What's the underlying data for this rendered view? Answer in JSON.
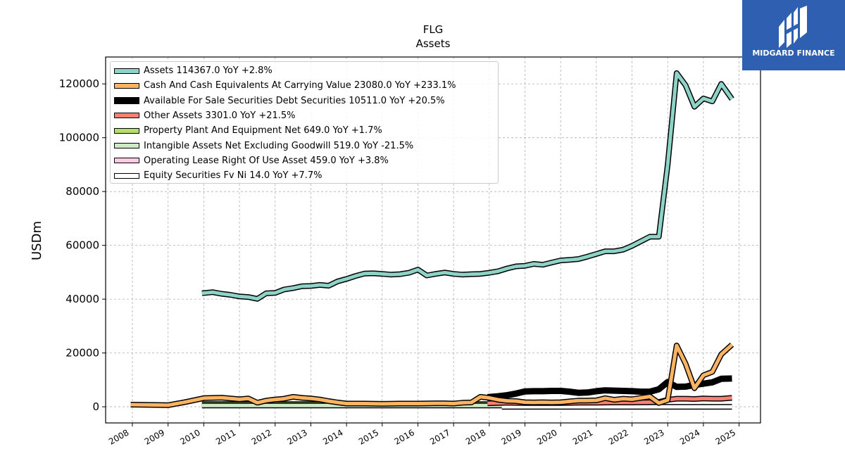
{
  "brand": {
    "name": "MIDGARD FINANCE",
    "logo_icon": "midgard-logo-icon",
    "background": "#2f5fb0"
  },
  "chart_data": {
    "type": "line",
    "title": "FLG",
    "subtitle": "Assets",
    "xlabel": "",
    "ylabel": "USDm",
    "xlim": [
      2007.25,
      2025.6
    ],
    "ylim": [
      -6000,
      130000
    ],
    "x_ticks": [
      "2008",
      "2009",
      "2010",
      "2011",
      "2012",
      "2013",
      "2014",
      "2015",
      "2016",
      "2017",
      "2018",
      "2019",
      "2020",
      "2021",
      "2022",
      "2023",
      "2024",
      "2025"
    ],
    "y_ticks": [
      "0",
      "20000",
      "40000",
      "60000",
      "80000",
      "100000",
      "120000"
    ],
    "grid": true,
    "legend_position": "top-left",
    "series": [
      {
        "name": "Assets  114367.0 YoY +2.8%",
        "color": "#8dd3c7",
        "width": 5,
        "points": [
          [
            2009.95,
            42200
          ],
          [
            2010.25,
            42600
          ],
          [
            2010.5,
            42000
          ],
          [
            2010.75,
            41600
          ],
          [
            2011.0,
            41000
          ],
          [
            2011.25,
            40800
          ],
          [
            2011.5,
            40100
          ],
          [
            2011.75,
            42200
          ],
          [
            2012.0,
            42300
          ],
          [
            2012.25,
            43600
          ],
          [
            2012.5,
            44100
          ],
          [
            2012.75,
            44800
          ],
          [
            2013.0,
            44900
          ],
          [
            2013.25,
            45300
          ],
          [
            2013.5,
            45000
          ],
          [
            2013.75,
            46600
          ],
          [
            2014.0,
            47500
          ],
          [
            2014.25,
            48600
          ],
          [
            2014.5,
            49500
          ],
          [
            2014.75,
            49600
          ],
          [
            2015.0,
            49400
          ],
          [
            2015.25,
            49100
          ],
          [
            2015.5,
            49300
          ],
          [
            2015.75,
            49800
          ],
          [
            2016.0,
            51000
          ],
          [
            2016.25,
            48800
          ],
          [
            2016.5,
            49400
          ],
          [
            2016.75,
            49900
          ],
          [
            2017.0,
            49400
          ],
          [
            2017.25,
            49100
          ],
          [
            2017.5,
            49300
          ],
          [
            2017.75,
            49400
          ],
          [
            2018.0,
            49800
          ],
          [
            2018.25,
            50400
          ],
          [
            2018.5,
            51400
          ],
          [
            2018.75,
            52200
          ],
          [
            2019.0,
            52400
          ],
          [
            2019.25,
            53100
          ],
          [
            2019.5,
            52800
          ],
          [
            2019.75,
            53600
          ],
          [
            2020.0,
            54400
          ],
          [
            2020.25,
            54600
          ],
          [
            2020.5,
            54900
          ],
          [
            2020.75,
            55800
          ],
          [
            2021.0,
            56800
          ],
          [
            2021.25,
            57800
          ],
          [
            2021.5,
            57800
          ],
          [
            2021.75,
            58400
          ],
          [
            2022.0,
            59800
          ],
          [
            2022.25,
            61500
          ],
          [
            2022.5,
            63200
          ],
          [
            2022.75,
            63200
          ],
          [
            2023.0,
            90000
          ],
          [
            2023.25,
            124000
          ],
          [
            2023.5,
            119500
          ],
          [
            2023.75,
            111500
          ],
          [
            2024.0,
            114600
          ],
          [
            2024.25,
            113500
          ],
          [
            2024.5,
            120000
          ],
          [
            2024.8,
            114367
          ]
        ]
      },
      {
        "name": "Cash And Cash Equivalents At Carrying Value  23080.0 YoY +233.1%",
        "color": "#fdb462",
        "width": 5,
        "points": [
          [
            2007.95,
            800
          ],
          [
            2008.5,
            700
          ],
          [
            2009.0,
            600
          ],
          [
            2009.5,
            1800
          ],
          [
            2010.0,
            3200
          ],
          [
            2010.5,
            3400
          ],
          [
            2011.0,
            2800
          ],
          [
            2011.25,
            3100
          ],
          [
            2011.5,
            1500
          ],
          [
            2011.75,
            2300
          ],
          [
            2012.0,
            2700
          ],
          [
            2012.25,
            3000
          ],
          [
            2012.5,
            3700
          ],
          [
            2012.75,
            3300
          ],
          [
            2013.0,
            3100
          ],
          [
            2013.25,
            2700
          ],
          [
            2013.5,
            2100
          ],
          [
            2013.75,
            1600
          ],
          [
            2014.0,
            1200
          ],
          [
            2014.5,
            1200
          ],
          [
            2015.0,
            1100
          ],
          [
            2015.5,
            1200
          ],
          [
            2016.0,
            1200
          ],
          [
            2016.5,
            1300
          ],
          [
            2016.75,
            1300
          ],
          [
            2017.0,
            1200
          ],
          [
            2017.25,
            1500
          ],
          [
            2017.5,
            1600
          ],
          [
            2017.75,
            3700
          ],
          [
            2018.0,
            3300
          ],
          [
            2018.25,
            2600
          ],
          [
            2018.5,
            2200
          ],
          [
            2018.75,
            2100
          ],
          [
            2019.0,
            1700
          ],
          [
            2019.25,
            1600
          ],
          [
            2019.5,
            1700
          ],
          [
            2019.75,
            1600
          ],
          [
            2020.0,
            1700
          ],
          [
            2020.25,
            2000
          ],
          [
            2020.5,
            2300
          ],
          [
            2020.75,
            2300
          ],
          [
            2021.0,
            2400
          ],
          [
            2021.25,
            3200
          ],
          [
            2021.5,
            2600
          ],
          [
            2021.75,
            3000
          ],
          [
            2022.0,
            2800
          ],
          [
            2022.25,
            3300
          ],
          [
            2022.5,
            3800
          ],
          [
            2022.75,
            1400
          ],
          [
            2023.0,
            2500
          ],
          [
            2023.25,
            22800
          ],
          [
            2023.5,
            16000
          ],
          [
            2023.75,
            6900
          ],
          [
            2024.0,
            11700
          ],
          [
            2024.25,
            13000
          ],
          [
            2024.5,
            19500
          ],
          [
            2024.8,
            23080
          ]
        ]
      },
      {
        "name": "Available For Sale Securities Debt Securities  10511.0 YoY +20.5%",
        "color": "#000000",
        "width": 9,
        "points": [
          [
            2017.95,
            3600
          ],
          [
            2018.25,
            3900
          ],
          [
            2018.5,
            4300
          ],
          [
            2018.75,
            4900
          ],
          [
            2019.0,
            5700
          ],
          [
            2019.25,
            5800
          ],
          [
            2019.5,
            5800
          ],
          [
            2019.75,
            5900
          ],
          [
            2020.0,
            5900
          ],
          [
            2020.25,
            5600
          ],
          [
            2020.5,
            5200
          ],
          [
            2020.75,
            5300
          ],
          [
            2021.0,
            5800
          ],
          [
            2021.25,
            6100
          ],
          [
            2021.5,
            6000
          ],
          [
            2021.75,
            5900
          ],
          [
            2022.0,
            5800
          ],
          [
            2022.25,
            5600
          ],
          [
            2022.5,
            5600
          ],
          [
            2022.75,
            6500
          ],
          [
            2023.0,
            9200
          ],
          [
            2023.25,
            7400
          ],
          [
            2023.5,
            7500
          ],
          [
            2023.75,
            8100
          ],
          [
            2024.0,
            8600
          ],
          [
            2024.25,
            9100
          ],
          [
            2024.5,
            10400
          ],
          [
            2024.8,
            10511
          ]
        ]
      },
      {
        "name": "Other Assets  3301.0 YoY +21.5%",
        "color": "#fb8072",
        "width": 5,
        "points": [
          [
            2017.95,
            1300
          ],
          [
            2018.5,
            1500
          ],
          [
            2019.0,
            1400
          ],
          [
            2019.5,
            1400
          ],
          [
            2020.0,
            1400
          ],
          [
            2020.5,
            1500
          ],
          [
            2021.0,
            1500
          ],
          [
            2021.5,
            1600
          ],
          [
            2022.0,
            1600
          ],
          [
            2022.5,
            1700
          ],
          [
            2022.75,
            1800
          ],
          [
            2023.0,
            2600
          ],
          [
            2023.25,
            3000
          ],
          [
            2023.5,
            3000
          ],
          [
            2023.75,
            2900
          ],
          [
            2024.0,
            3100
          ],
          [
            2024.25,
            3000
          ],
          [
            2024.5,
            3000
          ],
          [
            2024.8,
            3301
          ]
        ]
      },
      {
        "name": "Property Plant And Equipment Net  649.0 YoY +1.7%",
        "color": "#b3de69",
        "width": 5,
        "points": [
          [
            2009.95,
            1000
          ],
          [
            2018.35,
            1000
          ]
        ]
      },
      {
        "name": "Intangible Assets Net Excluding Goodwill  519.0 YoY -21.5%",
        "color": "#ccebc5",
        "width": 5,
        "points": [
          [
            2009.95,
            450
          ],
          [
            2018.35,
            450
          ]
        ]
      },
      {
        "name": "Operating Lease Right Of Use Asset  459.0 YoY +3.8%",
        "color": "#fccde5",
        "width": 5,
        "points": []
      },
      {
        "name": "Equity Securities Fv Ni  14.0 YoY +7.7%",
        "color": "#ffffff",
        "width": 5,
        "points": [
          [
            2018.35,
            0
          ],
          [
            2024.8,
            0
          ]
        ]
      }
    ]
  }
}
